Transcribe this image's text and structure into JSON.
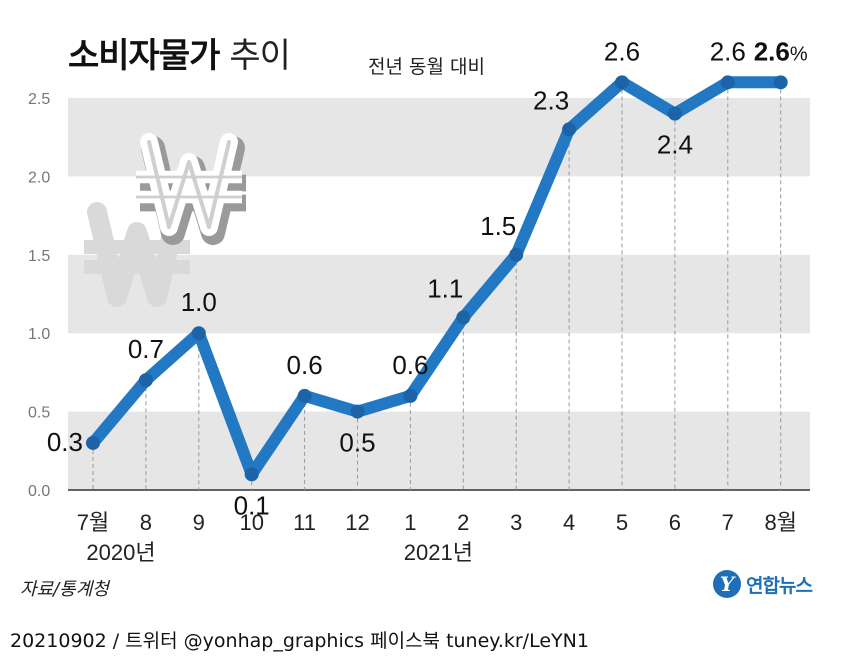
{
  "title": "소비자물가",
  "title_suffix": "추이",
  "subtitle": "전년 동월 대비",
  "source": "자료/통계청",
  "footer": "20210902 / 트위터 @yonhap_graphics  페이스북 tuney.kr/LeYN1",
  "logo": {
    "mark": "Y",
    "text": "연합뉴스"
  },
  "chart_data": {
    "type": "line",
    "title": "소비자물가 추이",
    "subtitle": "전년 동월 대비",
    "unit": "%",
    "categories": [
      "7월",
      "8",
      "9",
      "10",
      "11",
      "12",
      "1",
      "2",
      "3",
      "4",
      "5",
      "6",
      "7",
      "8월"
    ],
    "year_labels": [
      {
        "index": 0,
        "label": "2020년"
      },
      {
        "index": 6,
        "label": "2021년"
      }
    ],
    "series": [
      {
        "values": [
          0.3,
          0.7,
          1.0,
          0.1,
          0.6,
          0.5,
          0.6,
          1.1,
          1.5,
          2.3,
          2.6,
          2.4,
          2.6,
          2.6
        ],
        "labels": [
          "0.3",
          "0.7",
          "1.0",
          "0.1",
          "0.6",
          "0.5",
          "0.6",
          "1.1",
          "1.5",
          "2.3",
          "2.6",
          "2.4",
          "2.6",
          "2.6"
        ]
      }
    ],
    "last_label_suffix": "%",
    "yticks": [
      "0.0",
      "0.5",
      "1.0",
      "1.5",
      "2.0",
      "2.5"
    ],
    "ylim": [
      0,
      2.5
    ],
    "grid": "horizontal bands",
    "colors": {
      "line": "#2278c2",
      "band": "#e6e6e6",
      "dash": "#9a9a9a"
    },
    "decoration": "won-symbol"
  }
}
